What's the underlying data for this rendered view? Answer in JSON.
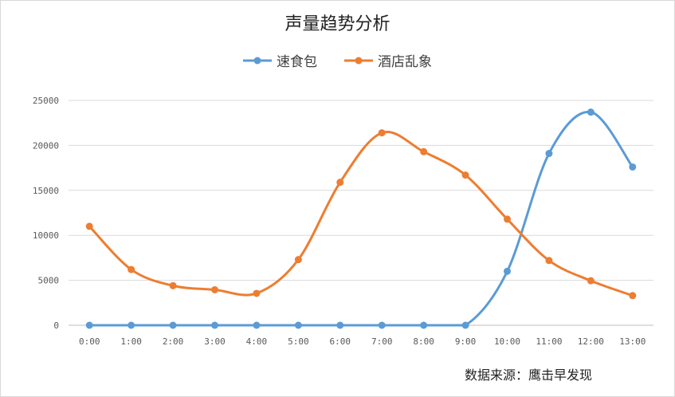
{
  "source_note": "数据来源：鹰击早发现",
  "chart_data": {
    "type": "line",
    "title": "声量趋势分析",
    "categories": [
      "0:00",
      "1:00",
      "2:00",
      "3:00",
      "4:00",
      "5:00",
      "6:00",
      "7:00",
      "8:00",
      "9:00",
      "10:00",
      "11:00",
      "12:00",
      "13:00"
    ],
    "series": [
      {
        "name": "速食包",
        "color": "#5b9bd5",
        "values": [
          0,
          0,
          0,
          0,
          0,
          0,
          0,
          0,
          0,
          0,
          6000,
          19100,
          23700,
          17600
        ]
      },
      {
        "name": "酒店乱象",
        "color": "#ed7d31",
        "values": [
          11000,
          6200,
          4400,
          3950,
          3550,
          7300,
          15900,
          21400,
          19300,
          16700,
          11800,
          7200,
          4950,
          3300
        ]
      }
    ],
    "y_ticks": [
      "25000",
      "20000",
      "15000",
      "10000",
      "5000",
      "0"
    ],
    "ylim": [
      0,
      25000
    ],
    "grid": true,
    "legend_position": "top"
  }
}
